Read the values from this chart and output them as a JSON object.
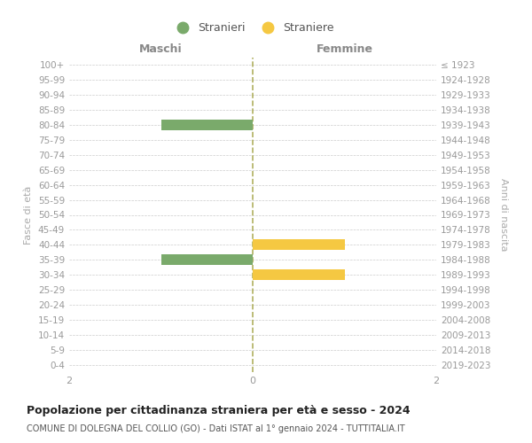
{
  "age_groups": [
    "100+",
    "95-99",
    "90-94",
    "85-89",
    "80-84",
    "75-79",
    "70-74",
    "65-69",
    "60-64",
    "55-59",
    "50-54",
    "45-49",
    "40-44",
    "35-39",
    "30-34",
    "25-29",
    "20-24",
    "15-19",
    "10-14",
    "5-9",
    "0-4"
  ],
  "birth_years": [
    "≤ 1923",
    "1924-1928",
    "1929-1933",
    "1934-1938",
    "1939-1943",
    "1944-1948",
    "1949-1953",
    "1954-1958",
    "1959-1963",
    "1964-1968",
    "1969-1973",
    "1974-1978",
    "1979-1983",
    "1984-1988",
    "1989-1993",
    "1994-1998",
    "1999-2003",
    "2004-2008",
    "2009-2013",
    "2014-2018",
    "2019-2023"
  ],
  "males": [
    0,
    0,
    0,
    0,
    1,
    0,
    0,
    0,
    0,
    0,
    0,
    0,
    0,
    1,
    0,
    0,
    0,
    0,
    0,
    0,
    0
  ],
  "females": [
    0,
    0,
    0,
    0,
    0,
    0,
    0,
    0,
    0,
    0,
    0,
    0,
    1,
    0,
    1,
    0,
    0,
    0,
    0,
    0,
    0
  ],
  "male_color": "#7aaa6b",
  "female_color": "#f5c842",
  "xlim": [
    -2,
    2
  ],
  "xlabel_left": "Maschi",
  "xlabel_right": "Femmine",
  "ylabel_left": "Fasce di età",
  "ylabel_right": "Anni di nascita",
  "title": "Popolazione per cittadinanza straniera per età e sesso - 2024",
  "subtitle": "COMUNE DI DOLEGNA DEL COLLIO (GO) - Dati ISTAT al 1° gennaio 2024 - TUTTITALIA.IT",
  "legend_stranieri": "Stranieri",
  "legend_straniere": "Straniere",
  "background_color": "#ffffff",
  "grid_color": "#cccccc",
  "tick_color": "#999999",
  "center_line_color": "#b0b060",
  "xticks": [
    -2,
    0,
    2
  ]
}
